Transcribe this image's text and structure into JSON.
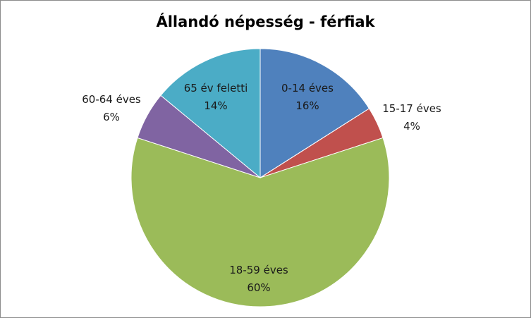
{
  "chart_data": {
    "type": "pie",
    "title": "Állandó népesség - férfiak",
    "slices": [
      {
        "label": "0-14 éves",
        "value": 16,
        "value_label": "16%",
        "color": "#4F81BD"
      },
      {
        "label": "15-17 éves",
        "value": 4,
        "value_label": "4%",
        "color": "#C0504D"
      },
      {
        "label": "18-59 éves",
        "value": 60,
        "value_label": "60%",
        "color": "#9BBB59"
      },
      {
        "label": "60-64 éves",
        "value": 6,
        "value_label": "6%",
        "color": "#8064A2"
      },
      {
        "label": "65 év feletti",
        "value": 14,
        "value_label": "14%",
        "color": "#4BACC6"
      }
    ],
    "start_angle": "12 o'clock",
    "direction": "clockwise",
    "legend": "none"
  }
}
